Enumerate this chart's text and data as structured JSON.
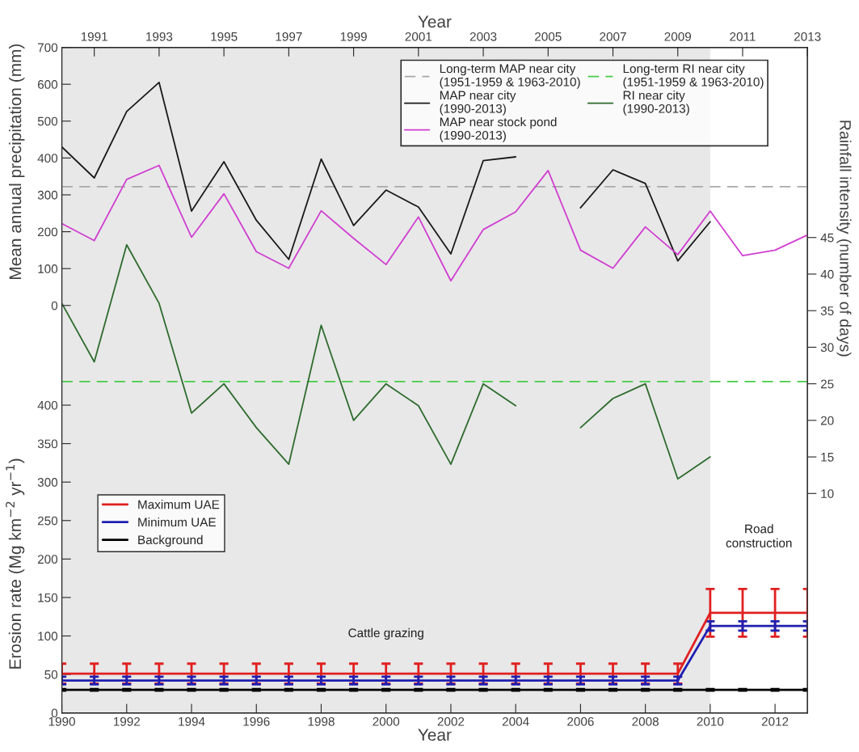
{
  "chart_data": {
    "type": "line",
    "xlabel": "Year",
    "x2label": "Year",
    "ylabel": "Erosion rate (Mg km$^{−2}$ yr$^{−1}$)",
    "y2label": "Rainfall intensity (number of days)",
    "y3label": "Mean annual precipitation (mm)",
    "xlim": [
      1990,
      2013
    ],
    "xticks": [
      1990,
      1992,
      1994,
      1996,
      1998,
      2000,
      2002,
      2004,
      2006,
      2008,
      2010,
      2012
    ],
    "x2lim": [
      1990,
      2013
    ],
    "x2ticks": [
      1991,
      1993,
      1995,
      1997,
      1999,
      2001,
      2003,
      2005,
      2007,
      2009,
      2011,
      2013
    ],
    "ylim": [
      0,
      865
    ],
    "yticks": [
      0,
      50,
      100,
      150,
      200,
      250,
      300,
      350,
      400
    ],
    "y2lim": [
      -20,
      71
    ],
    "y2ticks": [
      10,
      15,
      20,
      25,
      30,
      35,
      40,
      45
    ],
    "y3lim": [
      -1105,
      700
    ],
    "y3ticks": [
      0,
      100,
      200,
      300,
      400,
      500,
      600,
      700
    ],
    "x": [
      1990,
      1991,
      1992,
      1993,
      1994,
      1995,
      1996,
      1997,
      1998,
      1999,
      2000,
      2001,
      2002,
      2003,
      2004,
      2005,
      2006,
      2007,
      2008,
      2009,
      2010,
      2011,
      2012,
      2013
    ],
    "series": [
      {
        "name": "MAP near city\n(1990-2013)",
        "axis": "y3",
        "color": "#1a1a1a",
        "values": [
          430,
          346,
          526,
          605,
          256,
          390,
          231,
          125,
          397,
          217,
          313,
          267,
          140,
          393,
          403,
          null,
          265,
          368,
          331,
          121,
          227,
          null,
          null,
          null
        ]
      },
      {
        "name": "MAP near stock pond\n(1990-2013)",
        "axis": "y3",
        "color": "#d03fd0",
        "values": [
          222,
          176,
          342,
          380,
          185,
          303,
          146,
          101,
          257,
          182,
          111,
          240,
          67,
          206,
          254,
          366,
          150,
          101,
          213,
          138,
          256,
          135,
          150,
          191
        ]
      },
      {
        "name": "RI near city\n(1990-2013)",
        "axis": "y2",
        "color": "#2e6b2e",
        "x": [
          1990,
          1991,
          1992,
          1993,
          1994,
          1995,
          1996,
          1997,
          1998,
          1999,
          2000,
          2001,
          2002,
          2003,
          2004,
          2005,
          2006,
          2007,
          2008,
          2009,
          2010
        ],
        "values": [
          36,
          28,
          44,
          36,
          21,
          25,
          19,
          14,
          33,
          20,
          25,
          22,
          14,
          25,
          22,
          null,
          19,
          23,
          25,
          12,
          15
        ]
      },
      {
        "name": "Maximum UAE",
        "axis": "y",
        "color": "#e02020",
        "values": [
          51,
          51,
          51,
          51,
          51,
          51,
          51,
          51,
          51,
          51,
          51,
          51,
          51,
          51,
          51,
          51,
          51,
          51,
          51,
          51,
          130,
          130,
          130,
          130
        ],
        "errors": [
          13,
          13,
          13,
          13,
          13,
          13,
          13,
          13,
          13,
          13,
          13,
          13,
          13,
          13,
          13,
          13,
          13,
          13,
          13,
          13,
          31,
          31,
          31,
          31
        ]
      },
      {
        "name": "Minimum UAE",
        "axis": "y",
        "color": "#1f1fb0",
        "values": [
          42,
          42,
          42,
          42,
          42,
          42,
          42,
          42,
          42,
          42,
          42,
          42,
          42,
          42,
          42,
          42,
          42,
          42,
          42,
          42,
          113,
          113,
          113,
          113
        ],
        "errors": [
          5,
          5,
          5,
          5,
          5,
          5,
          5,
          5,
          5,
          5,
          5,
          5,
          5,
          5,
          5,
          5,
          5,
          5,
          5,
          5,
          6,
          6,
          6,
          6
        ]
      },
      {
        "name": "Background",
        "axis": "y",
        "color": "#000000",
        "values": [
          30,
          30,
          30,
          30,
          30,
          30,
          30,
          30,
          30,
          30,
          30,
          30,
          30,
          30,
          30,
          30,
          30,
          30,
          30,
          30,
          30,
          30,
          30,
          30
        ],
        "errors": [
          1,
          1,
          1,
          1,
          1,
          1,
          1,
          1,
          1,
          1,
          1,
          1,
          1,
          1,
          1,
          1,
          1,
          1,
          1,
          1,
          1,
          1,
          1,
          1
        ]
      }
    ],
    "ref_lines": [
      {
        "axis": "y3",
        "value": 322,
        "label": "Long-term MAP near city\n(1951-1959 & 1963-2010)",
        "color": "#a8a8a8",
        "line_style": "dashed"
      },
      {
        "axis": "y2",
        "value": 25.3,
        "label": "Long-term RI near city\n(1951-1959 & 1963-2010)",
        "color": "#44cc44",
        "line_style": "dashed"
      }
    ],
    "bands": [
      {
        "axis": "x",
        "from": 1990,
        "to": 2010,
        "label": "Cattle grazing",
        "color": "#e8e8e8"
      }
    ],
    "annotations": [
      "Road\nconstruction"
    ],
    "legend": "top right",
    "grid": false
  }
}
